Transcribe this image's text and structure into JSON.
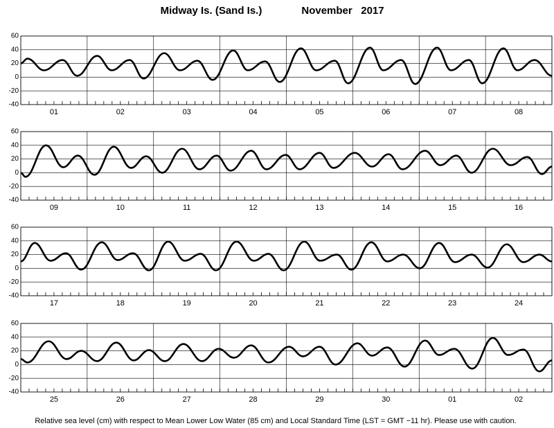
{
  "title": "Midway Is. (Sand Is.)",
  "period": "November   2017",
  "note": "Relative sea level (cm) with respect to Mean Lower Low Water (85 cm) and Local Standard Time (LST = GMT −11 hr). Please use with caution.",
  "chart_data": [
    {
      "type": "line",
      "categories": [
        "01",
        "02",
        "03",
        "04",
        "05",
        "06",
        "07",
        "08"
      ],
      "xlim": [
        0,
        8
      ],
      "ylim": [
        -40,
        60
      ],
      "yticks": [
        -40,
        -20,
        0,
        20,
        40,
        60
      ],
      "grid": true,
      "x": [
        0,
        0.1,
        0.35,
        0.63,
        0.85,
        1.15,
        1.37,
        1.64,
        1.85,
        2.16,
        2.4,
        2.66,
        2.89,
        3.2,
        3.42,
        3.68,
        3.9,
        4.22,
        4.45,
        4.73,
        4.93,
        5.26,
        5.46,
        5.73,
        5.94,
        6.27,
        6.48,
        6.75,
        6.95,
        7.27,
        7.48,
        7.74,
        8
      ],
      "series": [
        {
          "color": "#000000",
          "values": [
            20,
            27,
            10,
            25,
            2,
            31,
            10,
            25,
            -2,
            35,
            10,
            24,
            -4,
            39,
            10,
            23,
            -7,
            42,
            10,
            24,
            -9,
            43,
            10,
            25,
            -10,
            43,
            10,
            25,
            -9,
            42,
            10,
            25,
            2
          ]
        }
      ]
    },
    {
      "type": "line",
      "categories": [
        "09",
        "10",
        "11",
        "12",
        "13",
        "14",
        "15",
        "16"
      ],
      "xlim": [
        0,
        8
      ],
      "ylim": [
        -40,
        60
      ],
      "yticks": [
        -40,
        -20,
        0,
        20,
        40,
        60
      ],
      "grid": true,
      "x": [
        0,
        0.07,
        0.38,
        0.64,
        0.86,
        1.11,
        1.4,
        1.66,
        1.89,
        2.13,
        2.43,
        2.69,
        2.95,
        3.16,
        3.47,
        3.7,
        3.99,
        4.2,
        4.5,
        4.71,
        5.03,
        5.29,
        5.54,
        5.75,
        6.09,
        6.32,
        6.56,
        6.79,
        7.11,
        7.38,
        7.63,
        7.85,
        8
      ],
      "series": [
        {
          "color": "#000000",
          "values": [
            0,
            -6,
            40,
            8,
            25,
            -3,
            38,
            7,
            24,
            0,
            35,
            5,
            25,
            3,
            32,
            5,
            26,
            5,
            29,
            7,
            29,
            9,
            27,
            5,
            32,
            11,
            25,
            0,
            35,
            11,
            23,
            -2,
            9
          ]
        }
      ]
    },
    {
      "type": "line",
      "categories": [
        "17",
        "18",
        "19",
        "20",
        "21",
        "22",
        "23",
        "24"
      ],
      "xlim": [
        0,
        8
      ],
      "ylim": [
        -40,
        60
      ],
      "yticks": [
        -40,
        -20,
        0,
        20,
        40,
        60
      ],
      "grid": true,
      "x": [
        0,
        0.21,
        0.45,
        0.68,
        0.91,
        1.22,
        1.46,
        1.69,
        1.93,
        2.22,
        2.47,
        2.71,
        2.94,
        3.25,
        3.51,
        3.73,
        3.96,
        4.27,
        4.51,
        4.76,
        4.98,
        5.28,
        5.52,
        5.76,
        6.01,
        6.3,
        6.54,
        6.79,
        7.03,
        7.32,
        7.57,
        7.81,
        8
      ],
      "series": [
        {
          "color": "#000000",
          "values": [
            10,
            37,
            11,
            22,
            -2,
            38,
            12,
            22,
            -3,
            39,
            11,
            21,
            -3,
            39,
            11,
            21,
            -3,
            39,
            11,
            20,
            -2,
            38,
            10,
            20,
            0,
            37,
            9,
            20,
            1,
            35,
            9,
            20,
            10
          ]
        }
      ]
    },
    {
      "type": "line",
      "categories": [
        "25",
        "26",
        "27",
        "28",
        "29",
        "30",
        "01",
        "02"
      ],
      "xlim": [
        0,
        8
      ],
      "ylim": [
        -40,
        60
      ],
      "yticks": [
        -40,
        -20,
        0,
        20,
        40,
        60
      ],
      "grid": true,
      "x": [
        0,
        0.1,
        0.42,
        0.69,
        0.91,
        1.15,
        1.44,
        1.7,
        1.93,
        2.17,
        2.45,
        2.73,
        2.98,
        3.21,
        3.47,
        3.73,
        4.04,
        4.25,
        4.5,
        4.74,
        5.07,
        5.29,
        5.52,
        5.78,
        6.09,
        6.3,
        6.53,
        6.8,
        7.11,
        7.34,
        7.57,
        7.81,
        8
      ],
      "series": [
        {
          "color": "#000000",
          "values": [
            8,
            3,
            34,
            8,
            20,
            5,
            32,
            6,
            21,
            5,
            30,
            5,
            23,
            10,
            28,
            3,
            26,
            12,
            26,
            0,
            31,
            13,
            25,
            -3,
            35,
            14,
            23,
            -6,
            39,
            14,
            22,
            -10,
            6
          ]
        }
      ]
    }
  ]
}
